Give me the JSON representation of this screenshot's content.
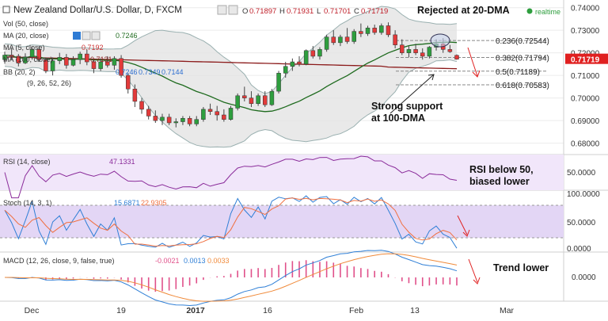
{
  "header": {
    "title": "New Zealand Dollar/U.S. Dollar, D, FXCM",
    "ohlc": [
      {
        "k": "O",
        "v": "0.71897"
      },
      {
        "k": "H",
        "v": "0.71931"
      },
      {
        "k": "L",
        "v": "0.71701"
      },
      {
        "k": "C",
        "v": "0.71719"
      }
    ],
    "realtime_label": "realtime"
  },
  "legend": {
    "vol": {
      "label": "Vol (50, close)"
    },
    "ma20": {
      "label": "MA (20, close)",
      "value": "0.7246"
    },
    "ma5": {
      "label": "MA (5, close)",
      "value": "0.7192"
    },
    "ma100": {
      "label": "MA (100, close)",
      "value": "0.7131"
    },
    "bb": {
      "label": "BB (20, 2)",
      "v1": "0.7246",
      "v2": "0.7349",
      "v3": "0.7144"
    },
    "extra": {
      "label": "(9, 26, 52, 26)"
    }
  },
  "annotations": {
    "rejected": "Rejected at 20-DMA",
    "support_line1": "Strong support",
    "support_line2": "at 100-DMA",
    "rsi_line1": "RSI below 50,",
    "rsi_line2": "biased lower",
    "trend": "Trend lower"
  },
  "fib_levels": [
    {
      "label": "0.236(0.72544)",
      "value": 0.72544
    },
    {
      "label": "0.382(0.71794)",
      "value": 0.71794
    },
    {
      "label": "0.5(0.71189)",
      "value": 0.71189
    },
    {
      "label": "0.618(0.70583)",
      "value": 0.70583
    }
  ],
  "price_tag": "0.71719",
  "colors": {
    "up": "#2e9e3e",
    "down": "#e23a3a",
    "ma20": "#1f6b1f",
    "ma100": "#8b1a1a",
    "bb_fill": "#e3e3e3",
    "bb_line": "#9ab0b0",
    "rsi": "#8a2b9a",
    "stoch_k": "#2f7fd6",
    "stoch_d": "#f07040",
    "macd": "#2f7fd6",
    "signal": "#f08a3a",
    "hist": "#e0508a",
    "price_tag_bg": "#e02020"
  },
  "rsi_panel": {
    "label": "RSI (14, close)",
    "value": "47.1331",
    "axis": "50.0000"
  },
  "stoch_panel": {
    "label": "Stoch (14, 3, 1)",
    "k_value": "15.6871",
    "d_value": "22.9305",
    "axis": [
      "100.0000",
      "50.0000",
      "0.0000"
    ]
  },
  "macd_panel": {
    "label": "MACD (12, 26, close, 9, false, true)",
    "hist_value": "-0.0021",
    "macd_value": "0.0013",
    "signal_value": "0.0033",
    "axis": "0.0000"
  },
  "chart_data": {
    "type": "candlestick",
    "y_axis_ticks": [
      "0.74000",
      "0.73000",
      "0.72000",
      "0.71000",
      "0.70000",
      "0.69000",
      "0.68000"
    ],
    "ylim": [
      0.676,
      0.742
    ],
    "x_axis_labels": [
      "Dec",
      "19",
      "2017",
      "16",
      "Feb",
      "13",
      "Mar"
    ],
    "candles": [
      [
        0.717,
        0.7205,
        0.7152,
        0.719
      ],
      [
        0.719,
        0.722,
        0.717,
        0.7185
      ],
      [
        0.7185,
        0.7195,
        0.714,
        0.7155
      ],
      [
        0.7155,
        0.7198,
        0.715,
        0.7182
      ],
      [
        0.7182,
        0.7225,
        0.717,
        0.7215
      ],
      [
        0.7215,
        0.723,
        0.716,
        0.717
      ],
      [
        0.717,
        0.718,
        0.711,
        0.712
      ],
      [
        0.712,
        0.718,
        0.71,
        0.7165
      ],
      [
        0.7165,
        0.72,
        0.715,
        0.718
      ],
      [
        0.718,
        0.7195,
        0.713,
        0.7145
      ],
      [
        0.7145,
        0.7185,
        0.714,
        0.717
      ],
      [
        0.717,
        0.7205,
        0.715,
        0.7195
      ],
      [
        0.7195,
        0.7215,
        0.7145,
        0.716
      ],
      [
        0.716,
        0.7175,
        0.711,
        0.713
      ],
      [
        0.713,
        0.7175,
        0.712,
        0.716
      ],
      [
        0.716,
        0.7185,
        0.7135,
        0.7145
      ],
      [
        0.7145,
        0.7185,
        0.7125,
        0.7175
      ],
      [
        0.7175,
        0.719,
        0.709,
        0.71
      ],
      [
        0.71,
        0.711,
        0.702,
        0.704
      ],
      [
        0.704,
        0.706,
        0.696,
        0.6985
      ],
      [
        0.6985,
        0.7,
        0.693,
        0.695
      ],
      [
        0.695,
        0.6965,
        0.6905,
        0.692
      ],
      [
        0.692,
        0.6945,
        0.689,
        0.69
      ],
      [
        0.69,
        0.693,
        0.688,
        0.6915
      ],
      [
        0.6915,
        0.693,
        0.688,
        0.689
      ],
      [
        0.689,
        0.691,
        0.687,
        0.6895
      ],
      [
        0.6895,
        0.692,
        0.688,
        0.691
      ],
      [
        0.691,
        0.692,
        0.6875,
        0.6885
      ],
      [
        0.6885,
        0.692,
        0.6875,
        0.6905
      ],
      [
        0.6905,
        0.696,
        0.6895,
        0.695
      ],
      [
        0.695,
        0.6975,
        0.6925,
        0.694
      ],
      [
        0.694,
        0.6965,
        0.69,
        0.6925
      ],
      [
        0.6925,
        0.695,
        0.6895,
        0.6905
      ],
      [
        0.6905,
        0.6965,
        0.69,
        0.6955
      ],
      [
        0.6955,
        0.702,
        0.6945,
        0.701
      ],
      [
        0.701,
        0.705,
        0.6985,
        0.7
      ],
      [
        0.7,
        0.703,
        0.696,
        0.6975
      ],
      [
        0.6975,
        0.702,
        0.6965,
        0.701
      ],
      [
        0.701,
        0.703,
        0.696,
        0.697
      ],
      [
        0.697,
        0.704,
        0.6965,
        0.703
      ],
      [
        0.703,
        0.712,
        0.702,
        0.711
      ],
      [
        0.711,
        0.716,
        0.709,
        0.714
      ],
      [
        0.714,
        0.7175,
        0.712,
        0.716
      ],
      [
        0.716,
        0.7185,
        0.714,
        0.715
      ],
      [
        0.715,
        0.7215,
        0.7145,
        0.721
      ],
      [
        0.721,
        0.723,
        0.7175,
        0.7185
      ],
      [
        0.7185,
        0.7225,
        0.717,
        0.7215
      ],
      [
        0.7215,
        0.728,
        0.7205,
        0.727
      ],
      [
        0.727,
        0.73,
        0.7235,
        0.7245
      ],
      [
        0.7245,
        0.728,
        0.723,
        0.727
      ],
      [
        0.727,
        0.731,
        0.724,
        0.725
      ],
      [
        0.725,
        0.7305,
        0.724,
        0.7295
      ],
      [
        0.7295,
        0.733,
        0.727,
        0.7285
      ],
      [
        0.7285,
        0.732,
        0.7275,
        0.731
      ],
      [
        0.731,
        0.7325,
        0.728,
        0.729
      ],
      [
        0.729,
        0.733,
        0.728,
        0.732
      ],
      [
        0.732,
        0.7335,
        0.727,
        0.728
      ],
      [
        0.728,
        0.73,
        0.722,
        0.7235
      ],
      [
        0.7235,
        0.726,
        0.719,
        0.72
      ],
      [
        0.72,
        0.723,
        0.718,
        0.7215
      ],
      [
        0.7215,
        0.724,
        0.719,
        0.72
      ],
      [
        0.72,
        0.722,
        0.717,
        0.7185
      ],
      [
        0.7185,
        0.723,
        0.7175,
        0.7225
      ],
      [
        0.7225,
        0.726,
        0.721,
        0.724
      ],
      [
        0.724,
        0.7265,
        0.72,
        0.7215
      ],
      [
        0.7215,
        0.7235,
        0.72,
        0.7205
      ],
      [
        0.7189,
        0.7193,
        0.717,
        0.7172
      ]
    ]
  }
}
